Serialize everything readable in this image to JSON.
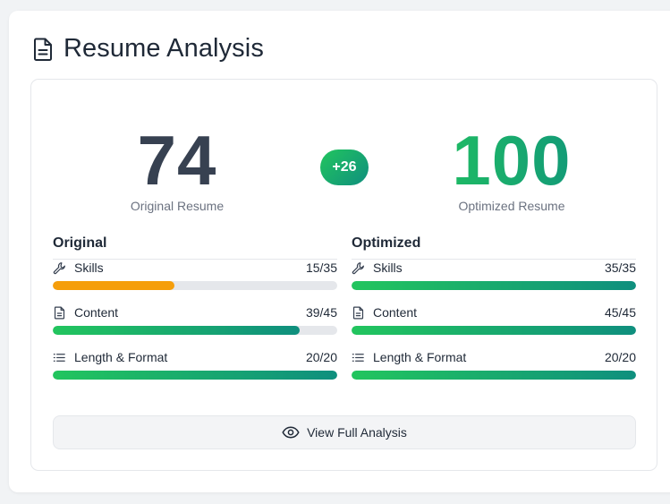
{
  "header": {
    "title": "Resume Analysis",
    "icon": "document-icon"
  },
  "scores": {
    "original": {
      "value": "74",
      "label": "Original Resume"
    },
    "optimized": {
      "value": "100",
      "label": "Optimized Resume"
    },
    "delta": "+26"
  },
  "colors": {
    "accent_start": "#22c55e",
    "accent_end": "#0f8f7e",
    "warning": "#f59e0b"
  },
  "original": {
    "title": "Original",
    "metrics": [
      {
        "icon": "wrench-icon",
        "name": "Skills",
        "score": "15/35",
        "progress": 0.4286,
        "color": "amber"
      },
      {
        "icon": "document-icon",
        "name": "Content",
        "score": "39/45",
        "progress": 0.8667,
        "color": "green"
      },
      {
        "icon": "list-icon",
        "name": "Length & Format",
        "score": "20/20",
        "progress": 1.0,
        "color": "green"
      }
    ]
  },
  "optimized": {
    "title": "Optimized",
    "metrics": [
      {
        "icon": "wrench-icon",
        "name": "Skills",
        "score": "35/35",
        "progress": 1.0,
        "color": "green"
      },
      {
        "icon": "document-icon",
        "name": "Content",
        "score": "45/45",
        "progress": 1.0,
        "color": "green"
      },
      {
        "icon": "list-icon",
        "name": "Length & Format",
        "score": "20/20",
        "progress": 1.0,
        "color": "green"
      }
    ]
  },
  "actions": {
    "view_label": "View Full Analysis",
    "view_icon": "eye-icon"
  }
}
